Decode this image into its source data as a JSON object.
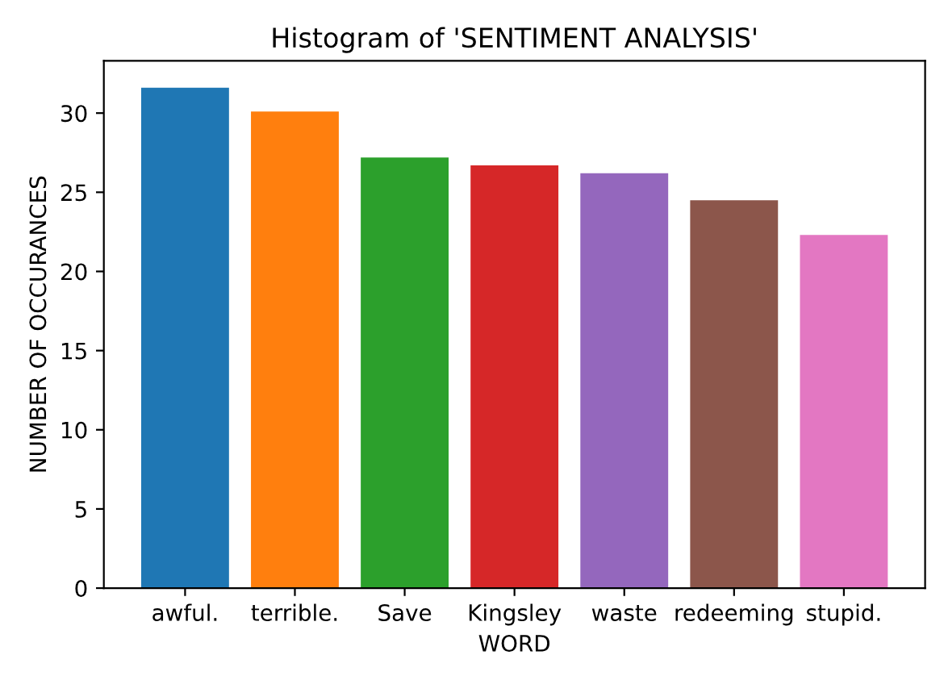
{
  "chart_data": {
    "type": "bar",
    "title": "Histogram of 'SENTIMENT ANALYSIS'",
    "xlabel": "WORD",
    "ylabel": "NUMBER OF OCCURANCES",
    "categories": [
      "awful.",
      "terrible.",
      "Save",
      "Kingsley",
      "waste",
      "redeeming",
      "stupid."
    ],
    "values": [
      31.6,
      30.1,
      27.2,
      26.7,
      26.2,
      24.5,
      22.3
    ],
    "colors": [
      "#1f77b4",
      "#ff7f0e",
      "#2ca02c",
      "#d62728",
      "#9467bd",
      "#8c564b",
      "#e377c2"
    ],
    "ylim": [
      0,
      33.3
    ],
    "yticks": [
      0,
      5,
      10,
      15,
      20,
      25,
      30
    ],
    "grid": false
  }
}
